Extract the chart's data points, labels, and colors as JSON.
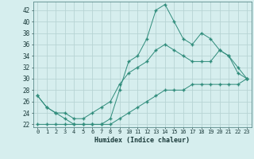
{
  "xlabel": "Humidex (Indice chaleur)",
  "x_values": [
    0,
    1,
    2,
    3,
    4,
    5,
    6,
    7,
    8,
    9,
    10,
    11,
    12,
    13,
    14,
    15,
    16,
    17,
    18,
    19,
    20,
    21,
    22,
    23
  ],
  "line1": [
    27,
    25,
    24,
    23,
    22,
    22,
    22,
    22,
    23,
    28,
    33,
    34,
    37,
    42,
    43,
    40,
    37,
    36,
    38,
    37,
    35,
    34,
    31,
    30
  ],
  "line2": [
    27,
    25,
    24,
    24,
    23,
    23,
    24,
    25,
    26,
    29,
    31,
    32,
    33,
    35,
    36,
    35,
    34,
    33,
    33,
    33,
    35,
    34,
    32,
    30
  ],
  "line3": [
    22,
    22,
    22,
    22,
    22,
    22,
    22,
    22,
    22,
    23,
    24,
    25,
    26,
    27,
    28,
    28,
    28,
    29,
    29,
    29,
    29,
    29,
    29,
    30
  ],
  "line_color": "#2e8b7a",
  "bg_color": "#d6eeee",
  "grid_color": "#b8d4d4",
  "xlim": [
    -0.5,
    23.5
  ],
  "ylim": [
    21.5,
    43.5
  ],
  "yticks": [
    22,
    24,
    26,
    28,
    30,
    32,
    34,
    36,
    38,
    40,
    42
  ],
  "xticks": [
    0,
    1,
    2,
    3,
    4,
    5,
    6,
    7,
    8,
    9,
    10,
    11,
    12,
    13,
    14,
    15,
    16,
    17,
    18,
    19,
    20,
    21,
    22,
    23
  ]
}
